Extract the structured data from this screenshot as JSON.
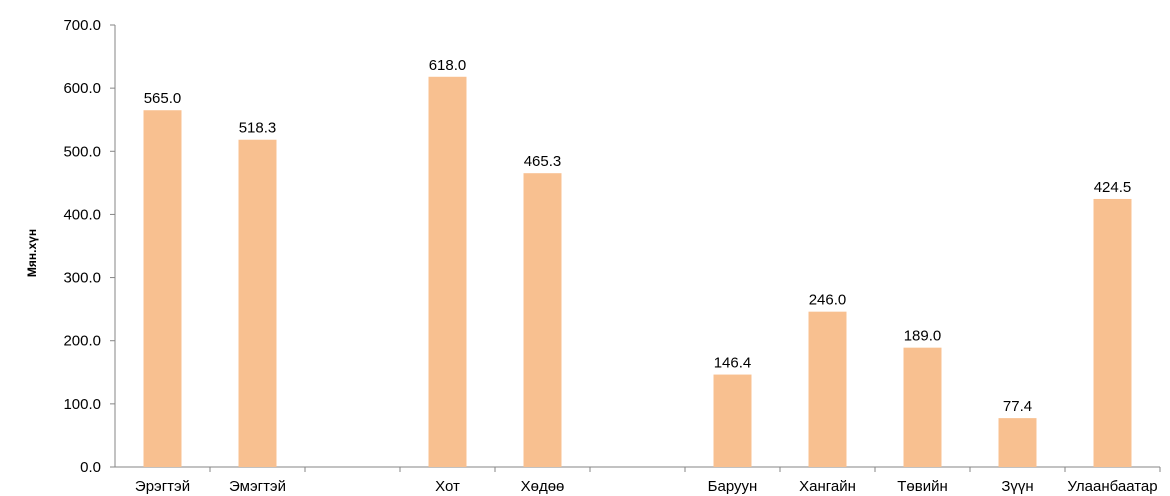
{
  "chart_data": {
    "type": "bar",
    "title": "",
    "xlabel": "",
    "ylabel": "Мян.хүн",
    "ylim": [
      0,
      700
    ],
    "yticks": [
      "0.0",
      "100.0",
      "200.0",
      "300.0",
      "400.0",
      "500.0",
      "600.0",
      "700.0"
    ],
    "grid": false,
    "legend": "none",
    "bar_color": "#F8C090",
    "categories": [
      "Эрэгтэй",
      "Эмэгтэй",
      "",
      "Хот",
      "Хөдөө",
      "",
      "Баруун",
      "Хангайн",
      "Төвийн",
      "Зүүн",
      "Улаанбаатар"
    ],
    "values": [
      565.0,
      518.3,
      null,
      618.0,
      465.3,
      null,
      146.4,
      246.0,
      189.0,
      77.4,
      424.5
    ],
    "value_labels": [
      "565.0",
      "518.3",
      "",
      "618.0",
      "465.3",
      "",
      "146.4",
      "246.0",
      "189.0",
      "77.4",
      "424.5"
    ]
  }
}
